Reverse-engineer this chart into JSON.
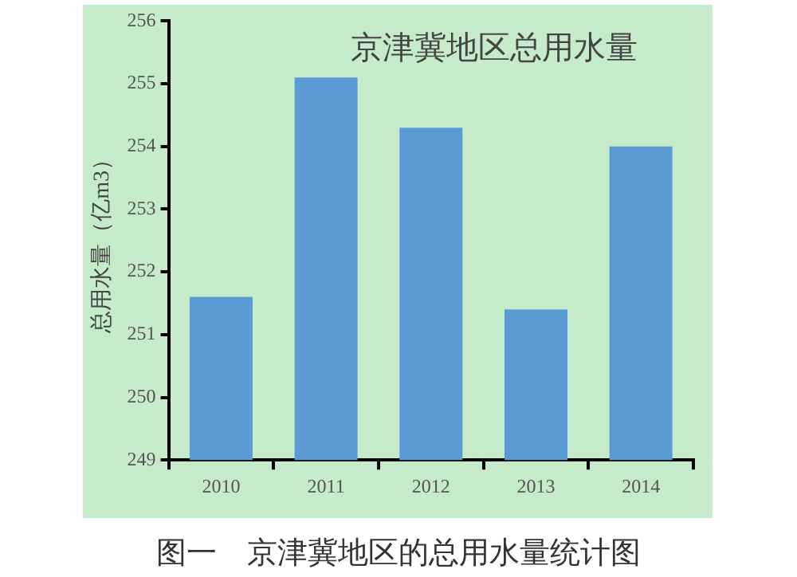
{
  "chart_data": {
    "type": "bar",
    "title": "京津冀地区总用水量",
    "ylabel": "总用水量（亿m3）",
    "annotations": [
      "图一　京津冀地区的总用水量统计图"
    ],
    "categories": [
      "2010",
      "2011",
      "2012",
      "2013",
      "2014"
    ],
    "values": [
      251.6,
      255.1,
      254.3,
      251.4,
      254.0
    ],
    "color": "#5b9bd5",
    "ylim": [
      249,
      256
    ],
    "yticks": [
      249,
      250,
      251,
      252,
      253,
      254,
      255,
      256
    ],
    "grid": false,
    "legend": false
  }
}
